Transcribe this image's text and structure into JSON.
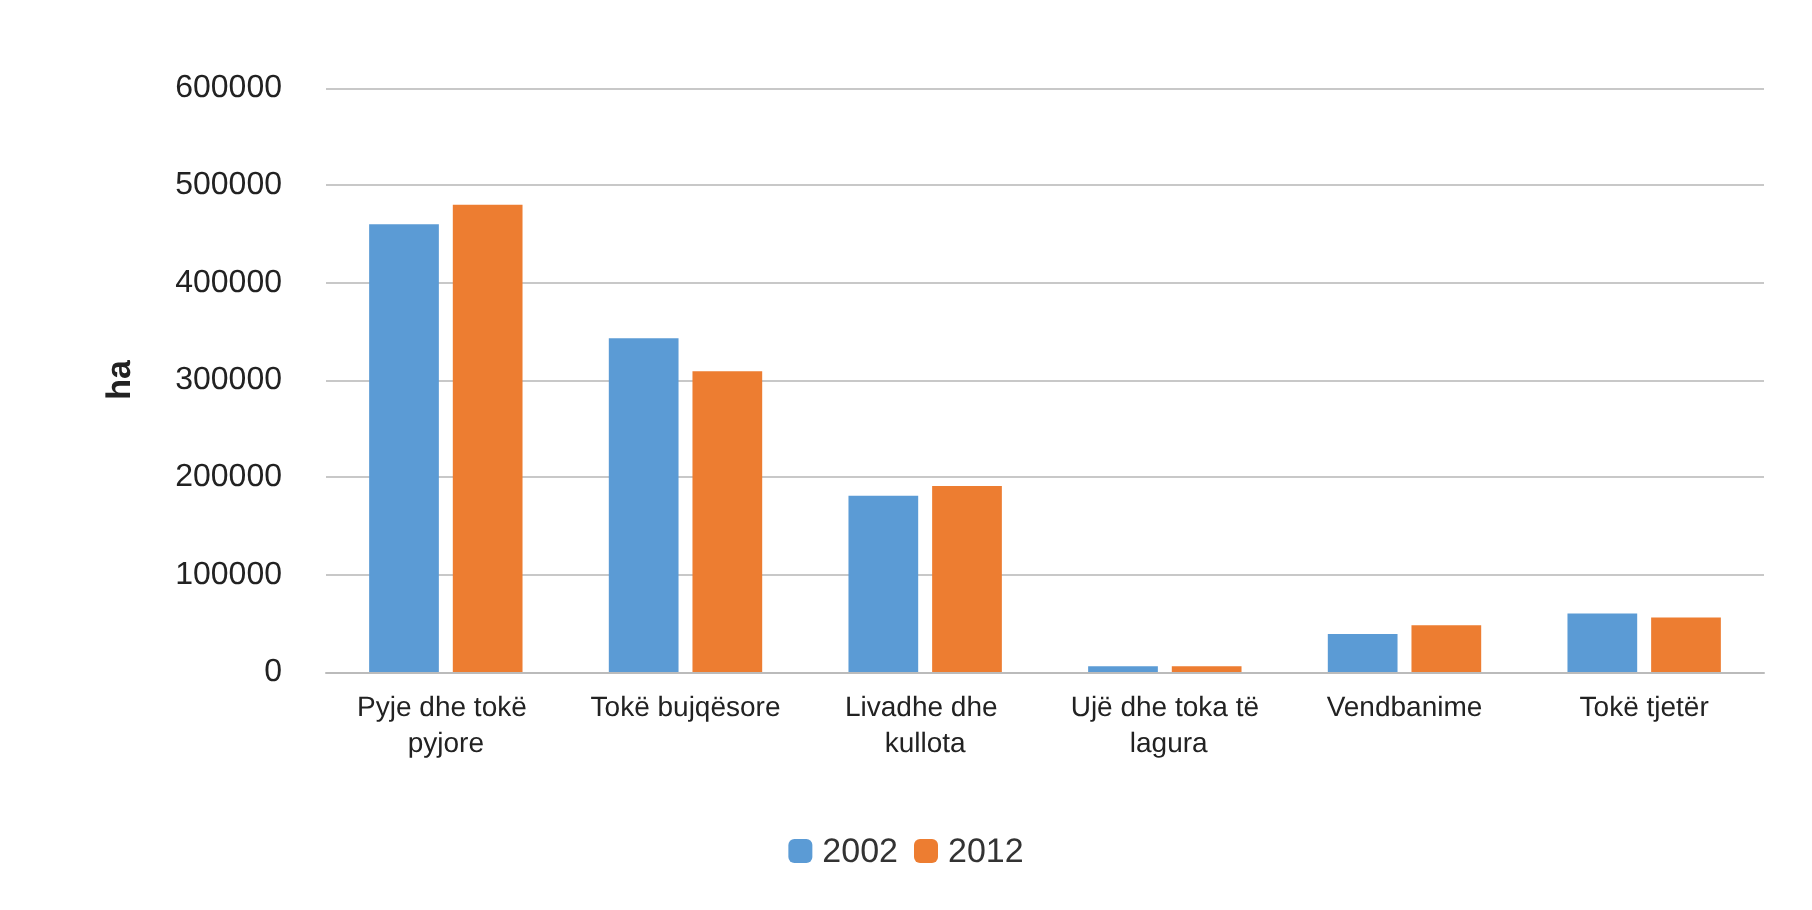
{
  "chart_data": {
    "type": "bar",
    "ylabel": "ha",
    "categories": [
      "Pyje dhe tokë pyjore",
      "Tokë bujqësore",
      "Livadhe dhe kullota",
      "Ujë dhe toka të lagura",
      "Vendbanime",
      "Tokë tjetër"
    ],
    "series": [
      {
        "name": "2002",
        "color": "#5b9bd5",
        "values": [
          460000,
          343000,
          181000,
          6000,
          39000,
          60000
        ]
      },
      {
        "name": "2012",
        "color": "#ed7d31",
        "values": [
          480000,
          309000,
          191000,
          6000,
          48000,
          56000
        ]
      }
    ],
    "ylim": [
      0,
      600000
    ],
    "yticks": [
      0,
      100000,
      200000,
      300000,
      400000,
      500000,
      600000
    ],
    "grid": "y",
    "legend": "bottom"
  }
}
